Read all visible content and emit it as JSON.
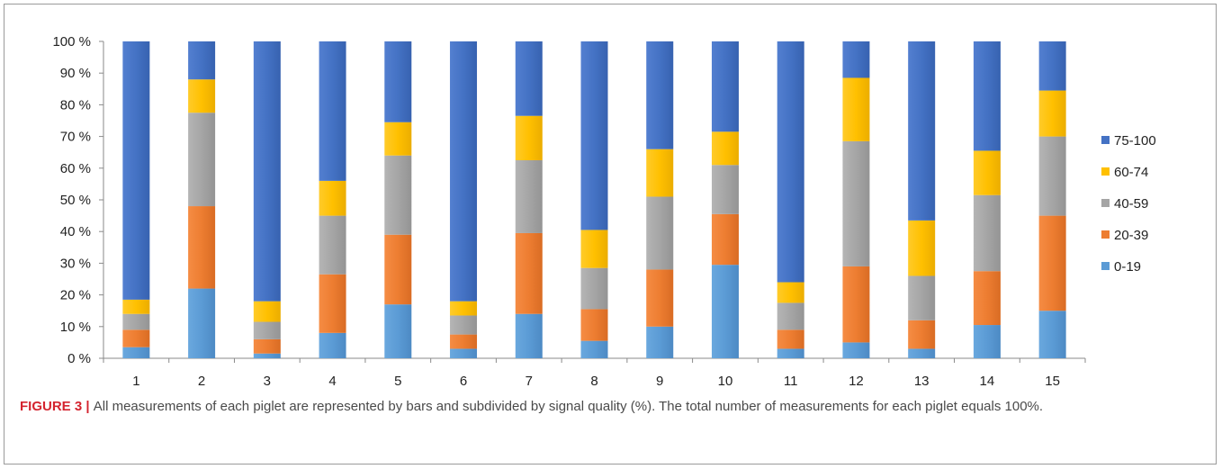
{
  "caption": {
    "label": "FIGURE 3",
    "separator": " | ",
    "text": "All measurements of each piglet are represented by bars and subdivided by signal quality (%). The total number of measurements for each piglet equals 100%."
  },
  "chart_data": {
    "type": "bar",
    "stacked": true,
    "categories": [
      "1",
      "2",
      "3",
      "4",
      "5",
      "6",
      "7",
      "8",
      "9",
      "10",
      "11",
      "12",
      "13",
      "14",
      "15"
    ],
    "ylim": [
      0,
      100
    ],
    "yticks": [
      0,
      10,
      20,
      30,
      40,
      50,
      60,
      70,
      80,
      90,
      100
    ],
    "ytick_labels": [
      "0 %",
      "10 %",
      "20 %",
      "30 %",
      "40 %",
      "50 %",
      "60 %",
      "70 %",
      "80 %",
      "90 %",
      "100 %"
    ],
    "xlabel": "",
    "ylabel": "",
    "grid": false,
    "legend_position": "right",
    "series": [
      {
        "name": "0-19",
        "color": "#5b9bd5",
        "values": [
          3.5,
          22,
          1.5,
          8,
          17,
          3,
          14,
          5.5,
          10,
          29.5,
          3,
          5,
          3,
          10.5,
          15
        ]
      },
      {
        "name": "20-39",
        "color": "#ed7d31",
        "values": [
          5.5,
          26,
          4.5,
          18.5,
          22,
          4.5,
          25.5,
          10,
          18,
          16,
          6,
          24,
          9,
          17,
          30
        ]
      },
      {
        "name": "40-59",
        "color": "#a5a5a5",
        "values": [
          5,
          29.5,
          5.5,
          18.5,
          25,
          6,
          23,
          13,
          23,
          15.5,
          8.5,
          39.5,
          14,
          24,
          25
        ]
      },
      {
        "name": "60-74",
        "color": "#ffc000",
        "values": [
          4.5,
          10.5,
          6.5,
          11,
          10.5,
          4.5,
          14,
          12,
          15,
          10.5,
          6.5,
          20,
          17.5,
          14,
          14.5
        ]
      },
      {
        "name": "75-100",
        "color": "#4472c4",
        "values": [
          81.5,
          12,
          82,
          44,
          25.5,
          82,
          23.5,
          59.5,
          34,
          28.5,
          76,
          11.5,
          56.5,
          34.5,
          15.5
        ]
      }
    ],
    "legend_order": [
      "75-100",
      "60-74",
      "40-59",
      "20-39",
      "0-19"
    ]
  }
}
